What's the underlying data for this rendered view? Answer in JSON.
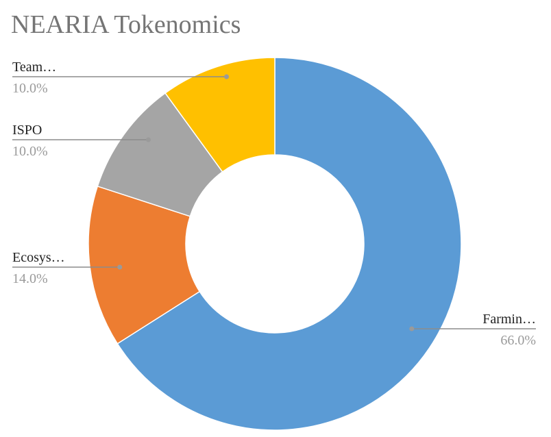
{
  "chart_data": {
    "type": "pie",
    "donut": true,
    "title": "NEARIA Tokenomics",
    "slices": [
      {
        "label": "Farmin…",
        "value": 66.0,
        "value_label": "66.0%",
        "color": "#5B9BD5"
      },
      {
        "label": "Ecosys…",
        "value": 14.0,
        "value_label": "14.0%",
        "color": "#ED7D31"
      },
      {
        "label": "ISPO",
        "value": 10.0,
        "value_label": "10.0%",
        "color": "#A5A5A5"
      },
      {
        "label": "Team…",
        "value": 10.0,
        "value_label": "10.0%",
        "color": "#FFC000"
      }
    ],
    "label_line_color": "#8c8c8c"
  }
}
